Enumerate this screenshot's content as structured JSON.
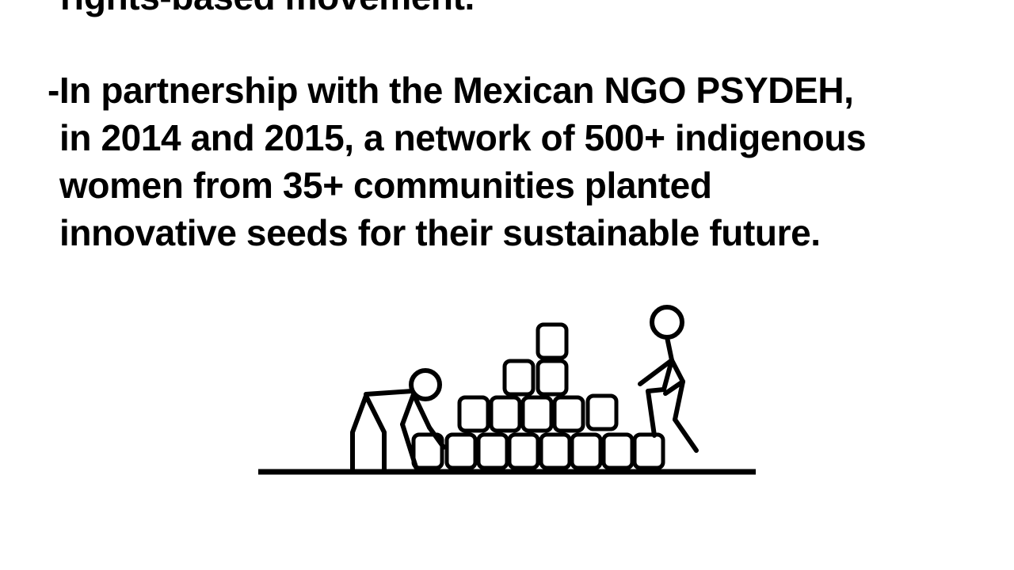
{
  "slide": {
    "top_fragment": "rights-based movement.",
    "paragraph_lines": [
      "-In partnership with the Mexican NGO PSYDEH,",
      "in 2014 and 2015, a network of 500+ indigenous",
      "women from 35+ communities planted",
      "innovative seeds for their sustainable future."
    ]
  }
}
